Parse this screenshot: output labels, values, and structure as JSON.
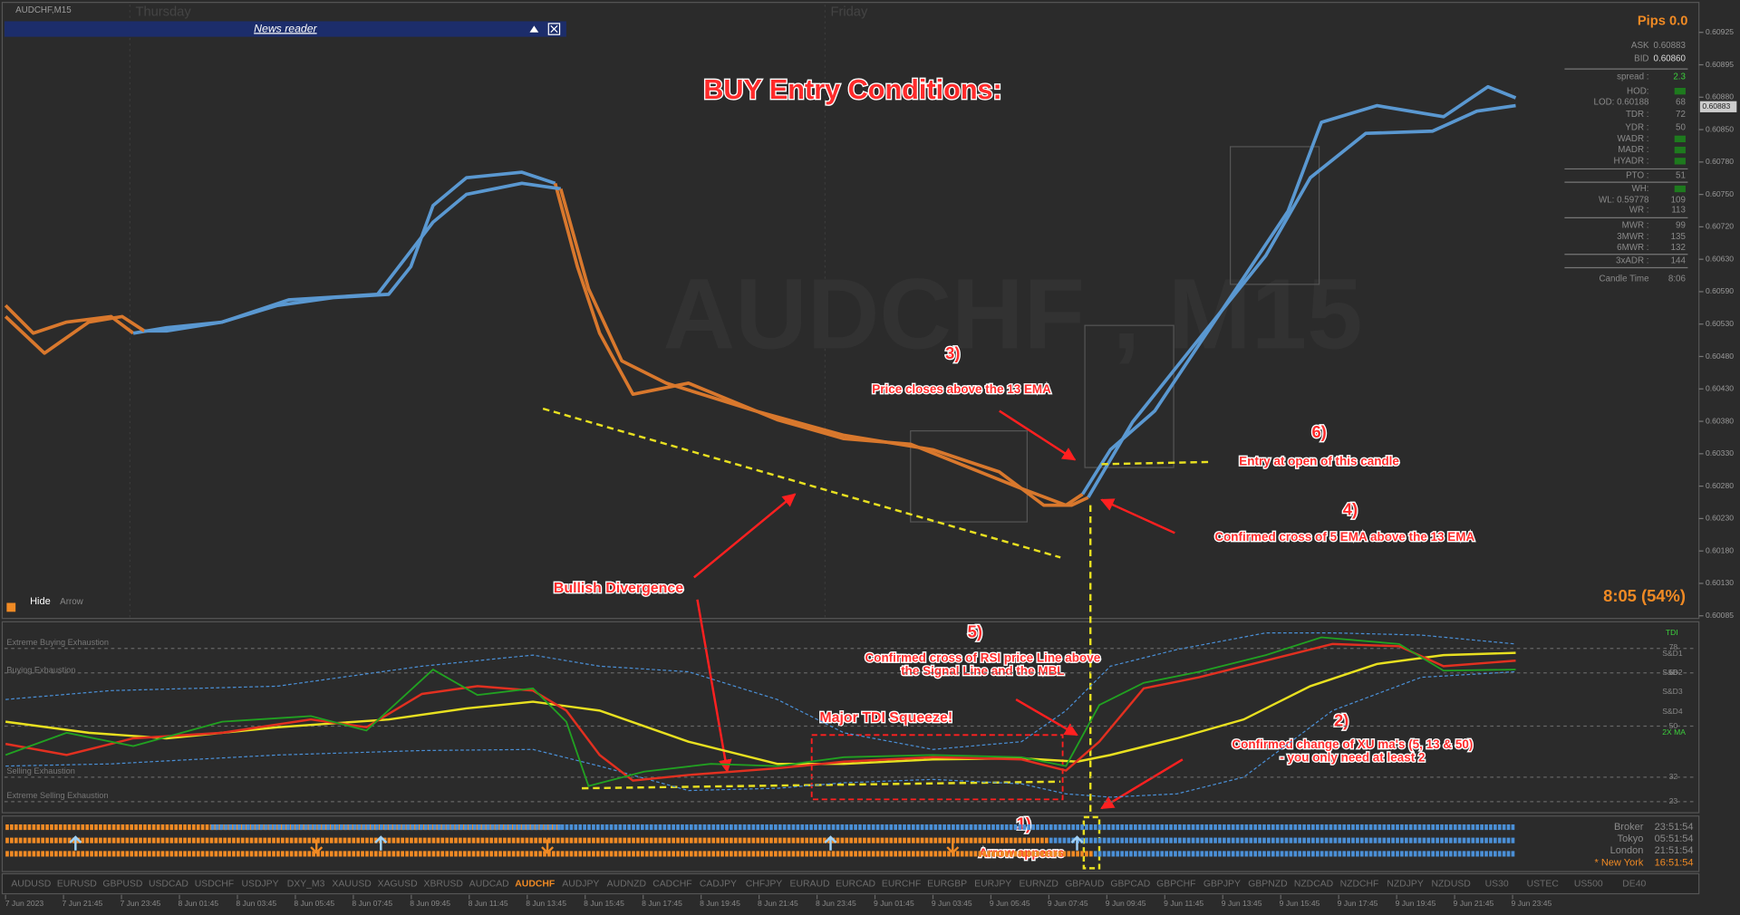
{
  "window": {
    "title": "AUDCHF,M15",
    "days": [
      "Thursday",
      "Friday"
    ],
    "watermark": "AUDCHF , M15",
    "news_reader": "News reader"
  },
  "info_panel": {
    "pips": "Pips 0.0",
    "rows": [
      {
        "label": "ASK",
        "value": "0.60883"
      },
      {
        "label": "BID",
        "value": "0.60860"
      },
      {
        "label": "spread :",
        "value": "2.3"
      },
      {
        "label": "HOD:"
      },
      {
        "label": "LOD: 0.60188",
        "value": "68"
      },
      {
        "label": "TDR :",
        "value": "72"
      },
      {
        "label": "YDR :",
        "value": "50"
      },
      {
        "label": "WADR :"
      },
      {
        "label": "MADR :"
      },
      {
        "label": "HYADR :"
      },
      {
        "label": "PTO :",
        "value": "51"
      },
      {
        "label": "WH:"
      },
      {
        "label": "WL: 0.59778",
        "value": "109"
      },
      {
        "label": "WR :",
        "value": "113"
      },
      {
        "label": "MWR :",
        "value": "99"
      },
      {
        "label": "3MWR :",
        "value": "135"
      },
      {
        "label": "6MWR :",
        "value": "132"
      },
      {
        "label": "3xADR :",
        "value": "144"
      },
      {
        "label": "Candle Time",
        "value": "8:06"
      }
    ]
  },
  "price_axis": [
    "0.60925",
    "0.60895",
    "0.60880",
    "0.60850",
    "0.60780",
    "0.60750",
    "0.60720",
    "0.60630",
    "0.60590",
    "0.60530",
    "0.60480",
    "0.60430",
    "0.60380",
    "0.60330",
    "0.60280",
    "0.60230",
    "0.60180",
    "0.60130",
    "0.60085"
  ],
  "price_tag": "0.60883",
  "countdown": "8:05 (54%)",
  "controls": [
    "Hide",
    "Arrow"
  ],
  "tdi": {
    "zones": [
      "Extreme Buying Exhaustion",
      "Buying Exhaustion",
      "Selling Exhaustion",
      "Extreme Selling Exhaustion"
    ],
    "right_labels": [
      "TDI",
      "S&D1",
      "78",
      "S&D2",
      "68",
      "S&D3",
      "S&D4",
      "50",
      "2X MA",
      "32",
      "23"
    ]
  },
  "annotations": [
    "BUY Entry Conditions:",
    "3)",
    "Price closes above the 13 EMA",
    "6)",
    "Entry at open of this candle",
    "4)",
    "Confirmed cross of 5 EMA above the 13 EMA",
    "Bullish Divergence",
    "5)",
    "Confirmed cross of RSI price Line above",
    "the Signal Line and the MBL",
    "Major TDI Squeeze!",
    "2)",
    "Confirmed change of XU ma's (5, 13 & 50)",
    "- you only need at least 2",
    "1)",
    "Arrow appears"
  ],
  "sessions": [
    {
      "name": "Broker",
      "time": "23:51:54"
    },
    {
      "name": "Tokyo",
      "time": "05:51:54"
    },
    {
      "name": "London",
      "time": "21:51:54"
    },
    {
      "name": "* New York",
      "time": "16:51:54"
    }
  ],
  "symbols": [
    "AUDUSD",
    "EURUSD",
    "GBPUSD",
    "USDCAD",
    "USDCHF",
    "USDJPY",
    "DXY_M3",
    "XAUUSD",
    "XAGUSD",
    "XBRUSD",
    "AUDCAD",
    "AUDCHF",
    "AUDJPY",
    "AUDNZD",
    "CADCHF",
    "CADJPY",
    "CHFJPY",
    "EURAUD",
    "EURCAD",
    "EURCHF",
    "EURGBP",
    "EURJPY",
    "EURNZD",
    "GBPAUD",
    "GBPCAD",
    "GBPCHF",
    "GBPJPY",
    "GBPNZD",
    "NZDCAD",
    "NZDCHF",
    "NZDJPY",
    "NZDUSD",
    "US30",
    "USTEC",
    "US500",
    "DE40"
  ],
  "time_axis": [
    "7 Jun 2023",
    "7 Jun 21:45",
    "7 Jun 23:45",
    "8 Jun 01:45",
    "8 Jun 03:45",
    "8 Jun 05:45",
    "8 Jun 07:45",
    "8 Jun 09:45",
    "8 Jun 11:45",
    "8 Jun 13:45",
    "8 Jun 15:45",
    "8 Jun 17:45",
    "8 Jun 19:45",
    "8 Jun 21:45",
    "8 Jun 23:45",
    "9 Jun 01:45",
    "9 Jun 03:45",
    "9 Jun 05:45",
    "9 Jun 07:45",
    "9 Jun 09:45",
    "9 Jun 11:45",
    "9 Jun 13:45",
    "9 Jun 15:45",
    "9 Jun 17:45",
    "9 Jun 19:45",
    "9 Jun 21:45",
    "9 Jun 23:45"
  ]
}
